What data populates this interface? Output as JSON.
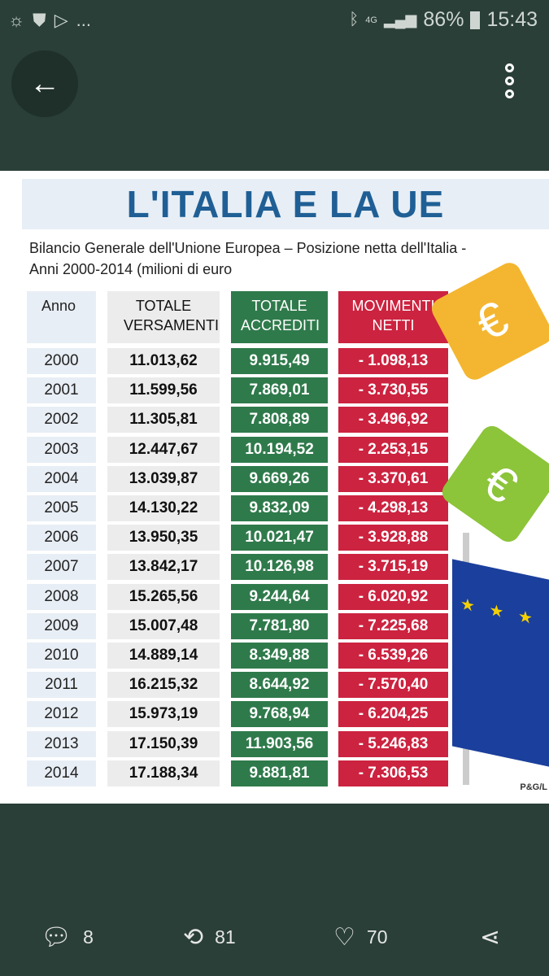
{
  "status": {
    "time": "15:43",
    "battery": "86%",
    "network": "4G",
    "notif_more": "..."
  },
  "infographic": {
    "title": "L'ITALIA E LA UE",
    "subtitle_line1": "Bilancio Generale dell'Unione Europea – Posizione netta dell'Italia -",
    "subtitle_line2": "Anni 2000-2014 (milioni di euro",
    "headers": [
      "Anno",
      "TOTALE VERSAMENTI",
      "TOTALE ACCREDITI",
      "MOVIMENTI NETTI"
    ],
    "rows": [
      [
        "2000",
        "11.013,62",
        "9.915,49",
        "- 1.098,13"
      ],
      [
        "2001",
        "11.599,56",
        "7.869,01",
        "- 3.730,55"
      ],
      [
        "2002",
        "11.305,81",
        "7.808,89",
        "- 3.496,92"
      ],
      [
        "2003",
        "12.447,67",
        "10.194,52",
        "- 2.253,15"
      ],
      [
        "2004",
        "13.039,87",
        "9.669,26",
        "- 3.370,61"
      ],
      [
        "2005",
        "14.130,22",
        "9.832,09",
        "- 4.298,13"
      ],
      [
        "2006",
        "13.950,35",
        "10.021,47",
        "- 3.928,88"
      ],
      [
        "2007",
        "13.842,17",
        "10.126,98",
        "- 3.715,19"
      ],
      [
        "2008",
        "15.265,56",
        "9.244,64",
        "- 6.020,92"
      ],
      [
        "2009",
        "15.007,48",
        "7.781,80",
        "- 7.225,68"
      ],
      [
        "2010",
        "14.889,14",
        "8.349,88",
        "- 6.539,26"
      ],
      [
        "2011",
        "16.215,32",
        "8.644,92",
        "- 7.570,40"
      ],
      [
        "2012",
        "15.973,19",
        "9.768,94",
        "- 6.204,25"
      ],
      [
        "2013",
        "17.150,39",
        "11.903,56",
        "- 5.246,83"
      ],
      [
        "2014",
        "17.188,34",
        "9.881,81",
        "- 7.306,53"
      ]
    ],
    "credit": "P&G/L",
    "euro_symbol": "€",
    "stars": "★ ★ ★"
  },
  "actions": {
    "replies": "8",
    "retweets": "81",
    "likes": "70"
  },
  "colors": {
    "background": "#2a3f38",
    "green": "#2f7a4b",
    "red": "#cc2340",
    "title": "#1f5f95"
  }
}
